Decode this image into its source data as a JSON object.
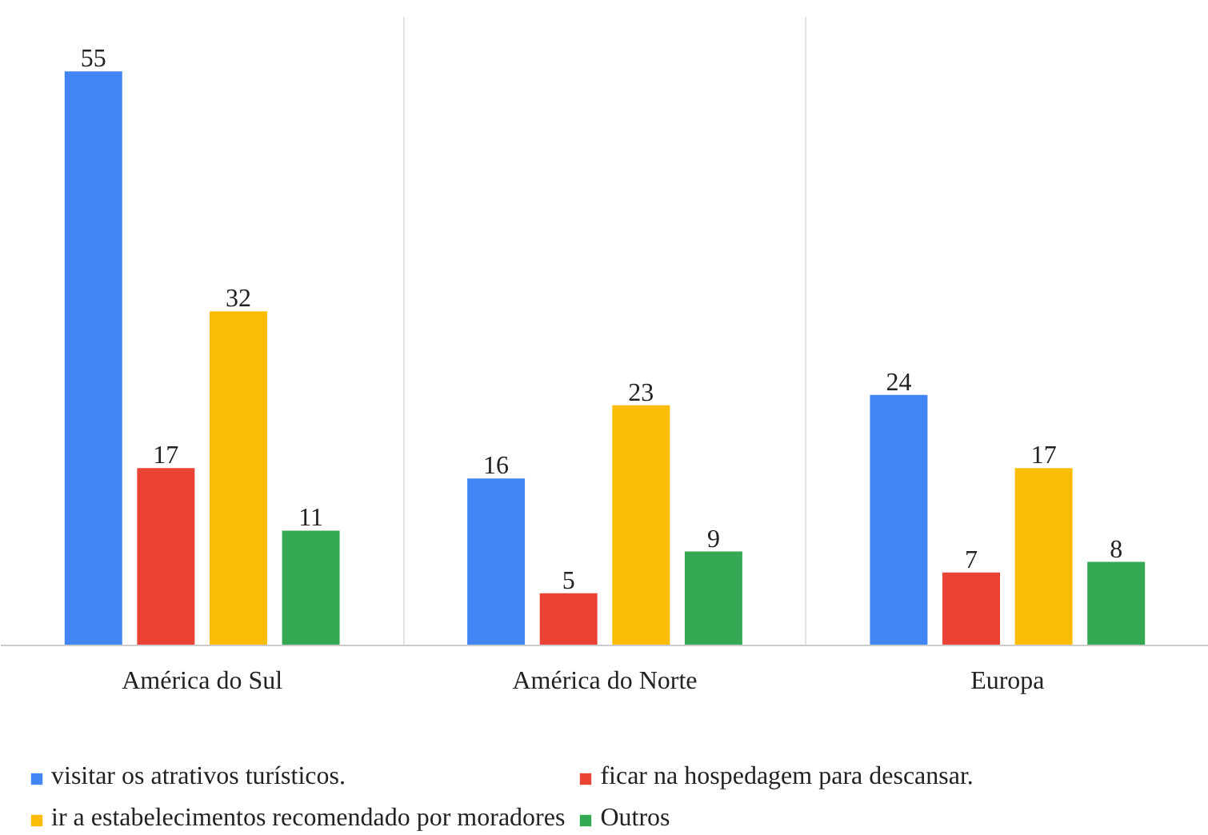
{
  "chart_data": {
    "type": "bar",
    "categories": [
      "América do Sul",
      "América do Norte",
      "Europa"
    ],
    "series": [
      {
        "name": "visitar os atrativos turísticos.",
        "color": "#4285f4",
        "values": [
          55,
          16,
          24
        ]
      },
      {
        "name": "ficar na hospedagem para descansar.",
        "color": "#ea4335",
        "values": [
          17,
          5,
          7
        ]
      },
      {
        "name": "ir a estabelecimentos recomendado por moradores",
        "color": "#fbbc04",
        "values": [
          32,
          23,
          17
        ]
      },
      {
        "name": "Outros",
        "color": "#34a853",
        "values": [
          11,
          9,
          8
        ]
      }
    ],
    "data_labels": true,
    "grid": "x",
    "legend": "bottom"
  }
}
